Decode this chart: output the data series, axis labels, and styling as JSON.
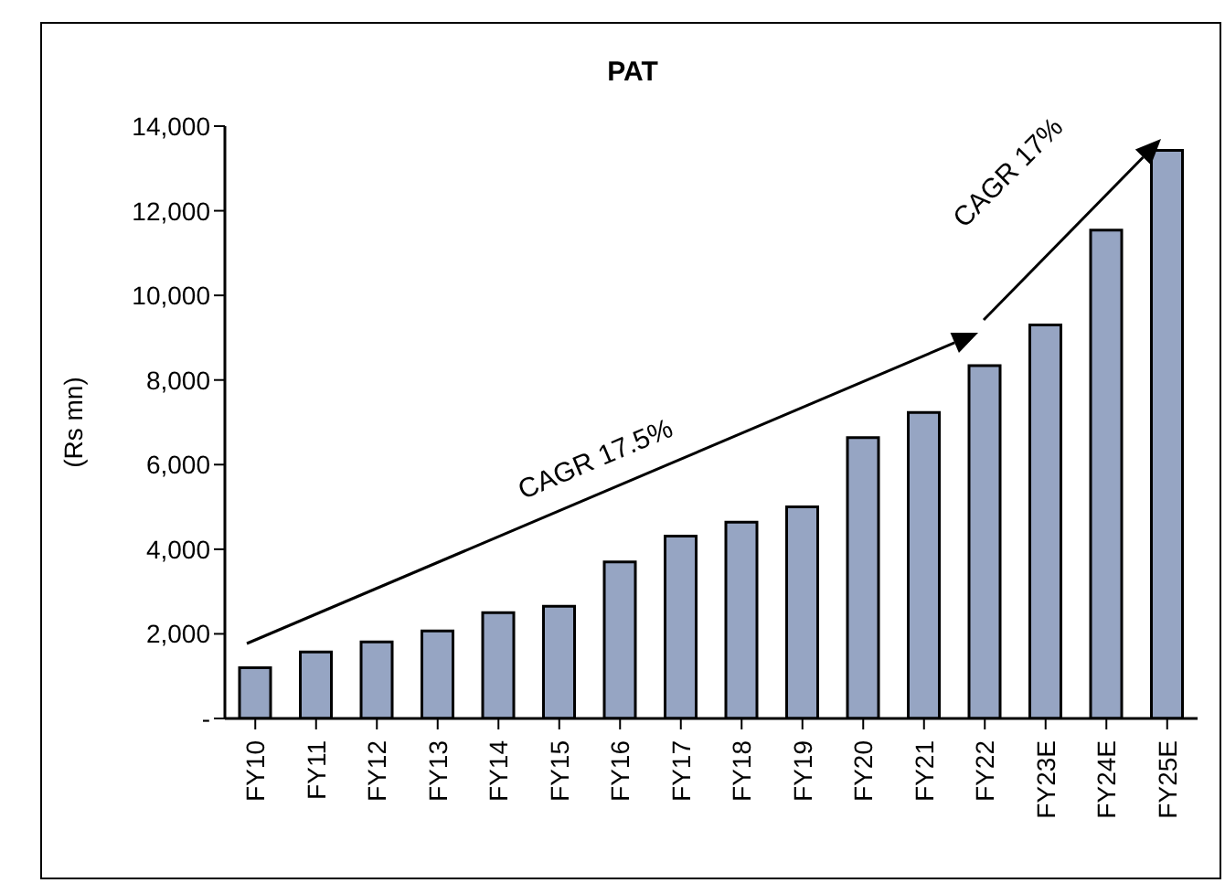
{
  "chart_data": {
    "type": "bar",
    "title": "PAT",
    "ylabel": "(Rs mn)",
    "categories": [
      "FY10",
      "FY11",
      "FY12",
      "FY13",
      "FY14",
      "FY15",
      "FY16",
      "FY17",
      "FY18",
      "FY19",
      "FY20",
      "FY21",
      "FY22",
      "FY23E",
      "FY24E",
      "FY25E"
    ],
    "values": [
      1200,
      1570,
      1810,
      2070,
      2500,
      2650,
      3700,
      4310,
      4640,
      5000,
      6640,
      7230,
      8340,
      9300,
      11540,
      13430
    ],
    "color": "#96a5c3",
    "ylim": [
      0,
      14000
    ],
    "yticks": [
      {
        "value": 0,
        "label": "-"
      },
      {
        "value": 2000,
        "label": "2,000"
      },
      {
        "value": 4000,
        "label": "4,000"
      },
      {
        "value": 6000,
        "label": "6,000"
      },
      {
        "value": 8000,
        "label": "8,000"
      },
      {
        "value": 10000,
        "label": "10,000"
      },
      {
        "value": 12000,
        "label": "12,000"
      },
      {
        "value": 14000,
        "label": "14,000"
      }
    ],
    "annotations": [
      "CAGR 17.5%",
      "CAGR 17%"
    ],
    "grid": false,
    "legend": false
  }
}
